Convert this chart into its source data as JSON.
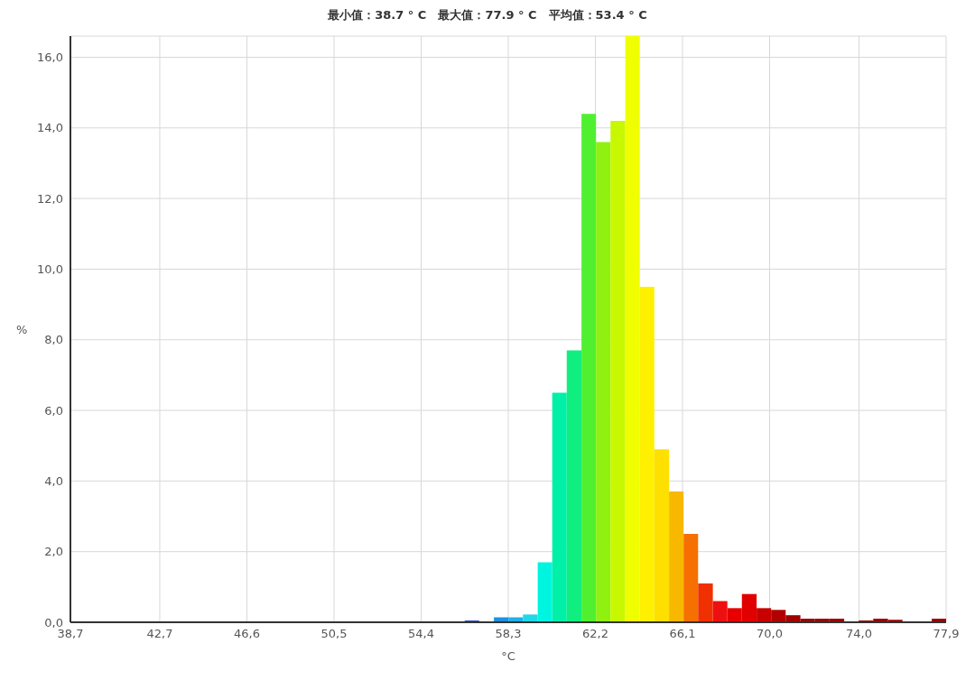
{
  "chart_data": {
    "type": "histogram",
    "title": "最小值：38.7 ° C　最大值：77.9 ° C　平均值：53.4 ° C",
    "xlabel": "°C",
    "ylabel": "%",
    "bins": [
      38.7,
      39.35,
      40.01,
      40.66,
      41.31,
      41.97,
      42.62,
      43.27,
      43.93,
      44.58,
      45.23,
      45.89,
      46.54,
      47.19,
      47.85,
      48.5,
      49.15,
      49.81,
      50.46,
      51.11,
      51.77,
      52.42,
      53.07,
      53.73,
      54.38,
      55.03,
      55.69,
      56.34,
      56.99,
      57.65,
      58.3,
      58.95,
      59.61,
      60.26,
      60.91,
      61.57,
      62.22,
      62.87,
      63.53,
      64.18,
      64.83,
      65.49,
      66.14,
      66.79,
      67.45,
      68.1,
      68.75,
      69.41,
      70.06,
      70.71,
      71.37,
      72.02,
      72.67,
      73.33,
      73.98,
      74.63,
      75.29,
      75.94,
      76.59,
      77.25,
      77.9
    ],
    "values": [
      0,
      0,
      0,
      0,
      0,
      0,
      0,
      0,
      0,
      0,
      0,
      0,
      0,
      0,
      0,
      0,
      0,
      0,
      0,
      0,
      0,
      0,
      0,
      0,
      0.01,
      0.01,
      0.02,
      0.05,
      0.02,
      0.14,
      0.14,
      0.22,
      1.7,
      6.5,
      7.7,
      14.4,
      13.6,
      14.2,
      16.6,
      9.5,
      4.9,
      3.7,
      2.5,
      1.1,
      0.6,
      0.4,
      0.8,
      0.4,
      0.35,
      0.2,
      0.1,
      0.1,
      0.1,
      0.01,
      0.05,
      0.1,
      0.07,
      0.01,
      0.01,
      0.1
    ],
    "colors": [
      "#7f00ff",
      "#7f00ff",
      "#7f00ff",
      "#7f00ff",
      "#7f00ff",
      "#7f00ff",
      "#7f00ff",
      "#7f00ff",
      "#7f00ff",
      "#7f00ff",
      "#7f00ff",
      "#7f00ff",
      "#7f00ff",
      "#7f00ff",
      "#7f00ff",
      "#7f00ff",
      "#7f00ff",
      "#7f00ff",
      "#7f00ff",
      "#7f00ff",
      "#7f00ff",
      "#7f00ff",
      "#7f00ff",
      "#8a2be2",
      "#8a2be2",
      "#6a3ad0",
      "#4040c0",
      "#3050c0",
      "#2060d0",
      "#1e90e0",
      "#20b0e8",
      "#20d8e8",
      "#00f5e0",
      "#00f0a8",
      "#10ee80",
      "#50f030",
      "#90f010",
      "#c8f800",
      "#f0ff00",
      "#fff000",
      "#fde000",
      "#f8b800",
      "#f57000",
      "#f03000",
      "#ee1010",
      "#e80000",
      "#e00000",
      "#c80000",
      "#b00000",
      "#a00000",
      "#990000",
      "#990000",
      "#990000",
      "#990000",
      "#990000",
      "#990000",
      "#990000",
      "#990000",
      "#990000",
      "#990000"
    ],
    "xlim": [
      38.7,
      77.9
    ],
    "xticks": [
      {
        "value": 38.7,
        "label": "38,7"
      },
      {
        "value": 42.7,
        "label": "42,7"
      },
      {
        "value": 46.6,
        "label": "46,6"
      },
      {
        "value": 50.5,
        "label": "50,5"
      },
      {
        "value": 54.4,
        "label": "54,4"
      },
      {
        "value": 58.3,
        "label": "58,3"
      },
      {
        "value": 62.2,
        "label": "62,2"
      },
      {
        "value": 66.1,
        "label": "66,1"
      },
      {
        "value": 70.0,
        "label": "70,0"
      },
      {
        "value": 74.0,
        "label": "74,0"
      },
      {
        "value": 77.9,
        "label": "77,9"
      }
    ],
    "ylim": [
      0,
      16.6
    ],
    "yticks": [
      {
        "value": 0,
        "label": "0,0"
      },
      {
        "value": 2,
        "label": "2,0"
      },
      {
        "value": 4,
        "label": "4,0"
      },
      {
        "value": 6,
        "label": "6,0"
      },
      {
        "value": 8,
        "label": "8,0"
      },
      {
        "value": 10,
        "label": "10,0"
      },
      {
        "value": 12,
        "label": "12,0"
      },
      {
        "value": 14,
        "label": "14,0"
      },
      {
        "value": 16,
        "label": "16,0"
      }
    ],
    "grid": true
  }
}
